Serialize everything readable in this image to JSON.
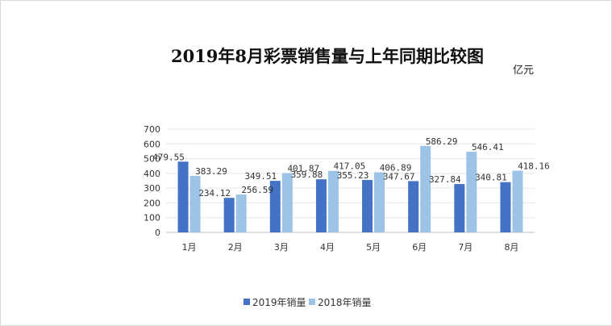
{
  "chart_data": {
    "type": "bar",
    "title": "2019年8月彩票销售量与上年同期比较图",
    "unit": "亿元",
    "categories": [
      "1月",
      "2月",
      "3月",
      "4月",
      "5月",
      "6月",
      "7月",
      "8月"
    ],
    "series": [
      {
        "name": "2019年销量",
        "color": "#4472c4",
        "values": [
          479.55,
          234.12,
          349.51,
          359.88,
          355.23,
          347.67,
          327.84,
          340.81
        ]
      },
      {
        "name": "2018年销量",
        "color": "#9dc3e6",
        "values": [
          383.29,
          256.59,
          401.87,
          417.05,
          406.89,
          586.29,
          546.41,
          418.16
        ]
      }
    ],
    "data_labels": [
      [
        "479.55",
        "234.12",
        "349.51",
        "359.88",
        "355.23",
        "347.67",
        "327.84",
        "340.81"
      ],
      [
        "383.29",
        "256.59",
        "401.87",
        "417.05",
        "406.89",
        "586.29",
        "546.41",
        "418.16"
      ]
    ],
    "ylim": [
      0,
      700
    ],
    "yticks": [
      "0",
      "100",
      "200",
      "300",
      "400",
      "500",
      "600",
      "700"
    ],
    "grid": true,
    "legend_position": "bottom"
  }
}
